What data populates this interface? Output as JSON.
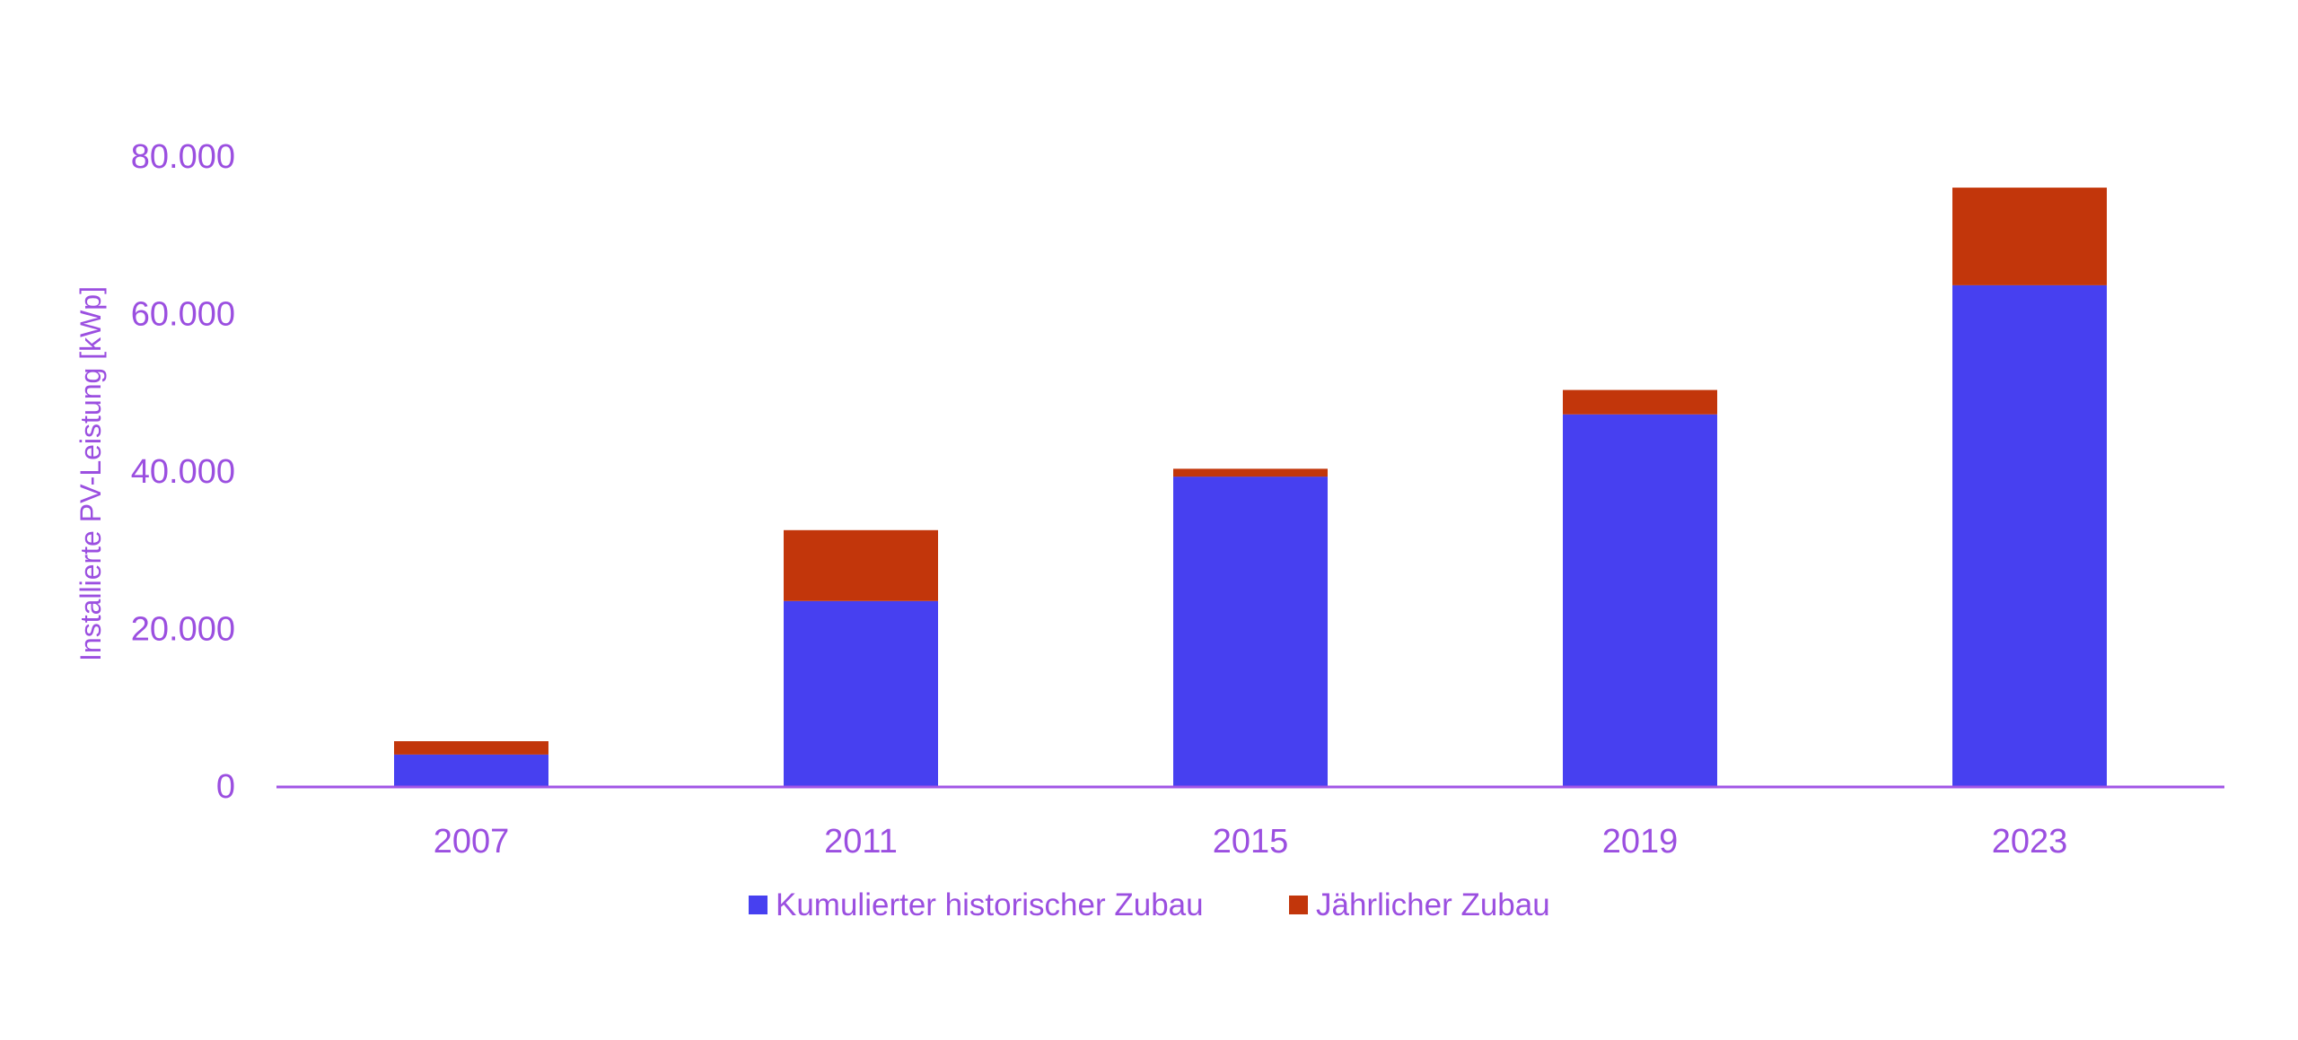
{
  "colors": {
    "text": "#9b4fe0",
    "axis": "#a155e6",
    "series_cumulative": "#4740f0",
    "series_annual": "#c2360b"
  },
  "chart_data": {
    "type": "bar",
    "stacked": true,
    "categories": [
      "2007",
      "2011",
      "2015",
      "2019",
      "2023"
    ],
    "series": [
      {
        "name": "Kumulierter historischer Zubau",
        "values": [
          4000,
          23500,
          39300,
          47200,
          63600
        ]
      },
      {
        "name": "Jährlicher Zubau",
        "values": [
          1700,
          9000,
          1000,
          3100,
          12400
        ]
      }
    ],
    "title": "",
    "xlabel": "",
    "ylabel": "Installierte PV-Leistung [kWp]",
    "ylim": [
      0,
      80000
    ],
    "yticks": [
      0,
      20000,
      40000,
      60000,
      80000
    ],
    "ytick_labels": [
      "0",
      "20.000",
      "40.000",
      "60.000",
      "80.000"
    ],
    "grid": false,
    "legend_position": "bottom-center"
  }
}
